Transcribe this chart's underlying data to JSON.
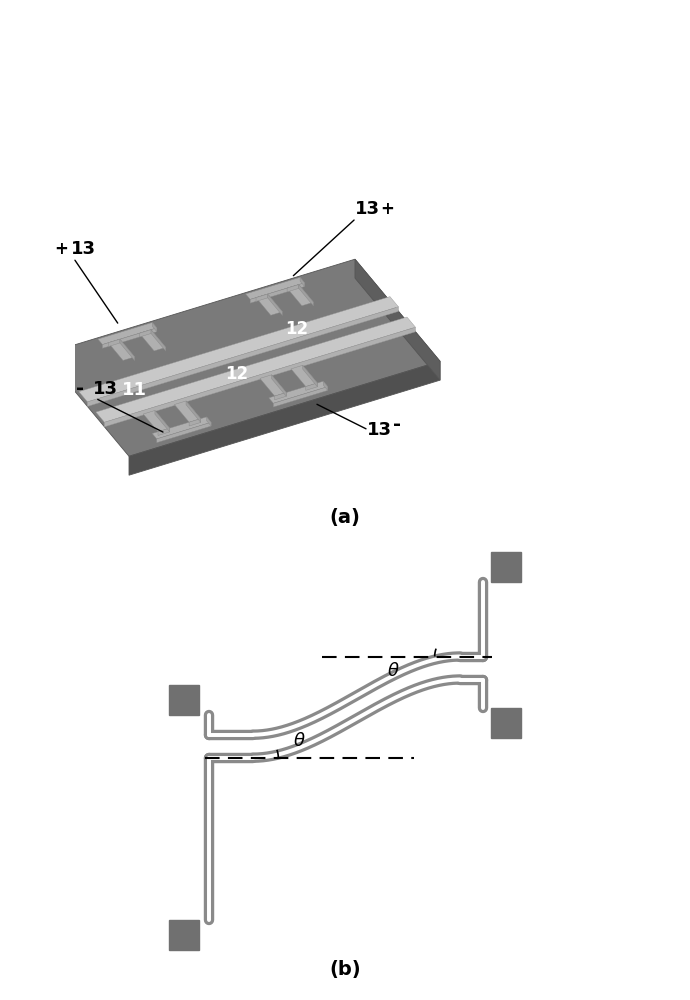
{
  "fig_width": 6.9,
  "fig_height": 10.0,
  "bg_color": "#ffffff",
  "panel_a_label": "(a)",
  "panel_b_label": "(b)",
  "body_dark": "#6a6a6a",
  "body_mid": "#7a7a7a",
  "body_light": "#999999",
  "body_side": "#505050",
  "waveguide_col": "#c8c8c8",
  "electrode_col": "#b0b0b0",
  "wg_gray": "#8a8a8a",
  "sq_gray": "#707070"
}
